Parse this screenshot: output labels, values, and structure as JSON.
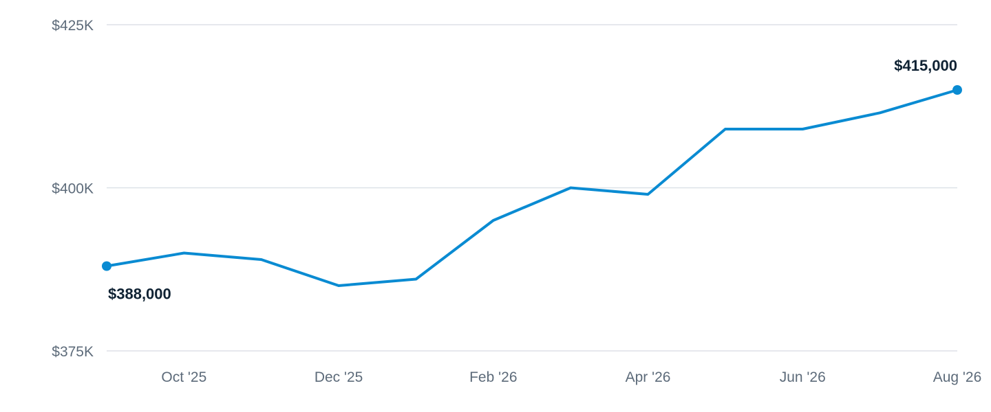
{
  "chart_data": {
    "type": "line",
    "title": "",
    "xlabel": "",
    "ylabel": "",
    "x": [
      "Sep '25",
      "Oct '25",
      "Nov '25",
      "Dec '25",
      "Jan '26",
      "Feb '26",
      "Mar '26",
      "Apr '26",
      "May '26",
      "Jun '26",
      "Jul '26",
      "Aug '26"
    ],
    "x_tick_labels": [
      {
        "index": 1,
        "label": "Oct '25"
      },
      {
        "index": 3,
        "label": "Dec '25"
      },
      {
        "index": 5,
        "label": "Feb '26"
      },
      {
        "index": 7,
        "label": "Apr '26"
      },
      {
        "index": 9,
        "label": "Jun '26"
      },
      {
        "index": 11,
        "label": "Aug '26"
      }
    ],
    "series": [
      {
        "values": [
          388000,
          390000,
          389000,
          385000,
          386000,
          395000,
          400000,
          399000,
          409000,
          409000,
          411500,
          415000
        ],
        "color": "#0a8bd2"
      }
    ],
    "ylim": [
      375000,
      425000
    ],
    "y_ticks": [
      {
        "value": 425000,
        "label": "$425K"
      },
      {
        "value": 400000,
        "label": "$400K"
      },
      {
        "value": 375000,
        "label": "$375K"
      }
    ],
    "grid": true,
    "legend": "none",
    "data_labels": [
      {
        "index": 0,
        "text": "$388,000",
        "placement": "below"
      },
      {
        "index": 11,
        "text": "$415,000",
        "placement": "above"
      }
    ],
    "highlight_points": [
      0,
      11
    ]
  }
}
